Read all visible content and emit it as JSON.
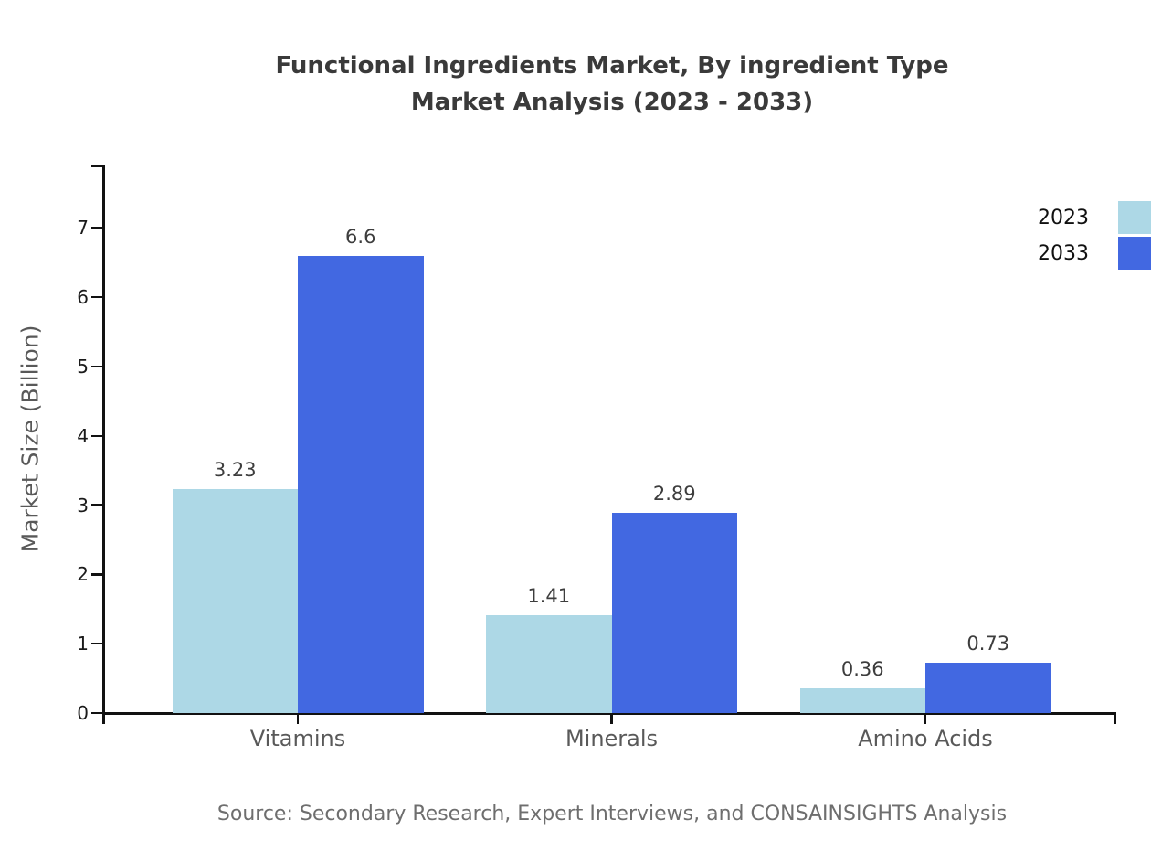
{
  "title": {
    "line1": "Functional Ingredients Market, By ingredient Type",
    "line2": "Market Analysis (2023 - 2033)"
  },
  "chart_data": {
    "type": "bar",
    "categories": [
      "Vitamins",
      "Minerals",
      "Amino Acids"
    ],
    "series": [
      {
        "name": "2023",
        "color": "#ADD8E6",
        "values": [
          3.23,
          1.41,
          0.36
        ]
      },
      {
        "name": "2033",
        "color": "#4268E1",
        "values": [
          6.6,
          2.89,
          0.73
        ]
      }
    ],
    "title": "Functional Ingredients Market, By ingredient Type Market Analysis (2023 - 2033)",
    "xlabel": "",
    "ylabel": "Market Size (Billion)",
    "ylim": [
      0,
      7.9
    ],
    "yticks": [
      0,
      1,
      2,
      3,
      4,
      5,
      6,
      7
    ],
    "grid": false,
    "legend_position": "top-right",
    "value_labels": true
  },
  "source": "Source: Secondary Research, Expert Interviews, and CONSAINSIGHTS Analysis"
}
